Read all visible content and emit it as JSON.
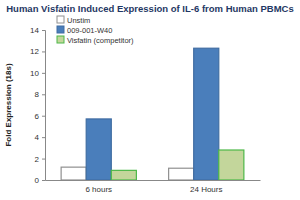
{
  "chart_data": {
    "type": "bar",
    "title": "Human Visfatin Induced Expression of IL-6 from Human PBMCs",
    "y_label": "Fold Expression (18s)",
    "categories": [
      "6 hours",
      "24 Hours"
    ],
    "series": [
      {
        "name": "Unstim",
        "color": "#ffffff",
        "values": [
          1.2,
          1.1
        ]
      },
      {
        "name": "009-001-W40",
        "color": "#4a7ebb",
        "values": [
          5.7,
          12.3
        ]
      },
      {
        "name": "Visfatin (competitor)",
        "color": "#c3d69b",
        "values": [
          0.9,
          2.8
        ]
      }
    ],
    "ylim": [
      0,
      14
    ],
    "yticks": [
      0,
      2,
      4,
      6,
      8,
      10,
      12,
      14
    ],
    "grid": false,
    "legend": "top-left"
  }
}
